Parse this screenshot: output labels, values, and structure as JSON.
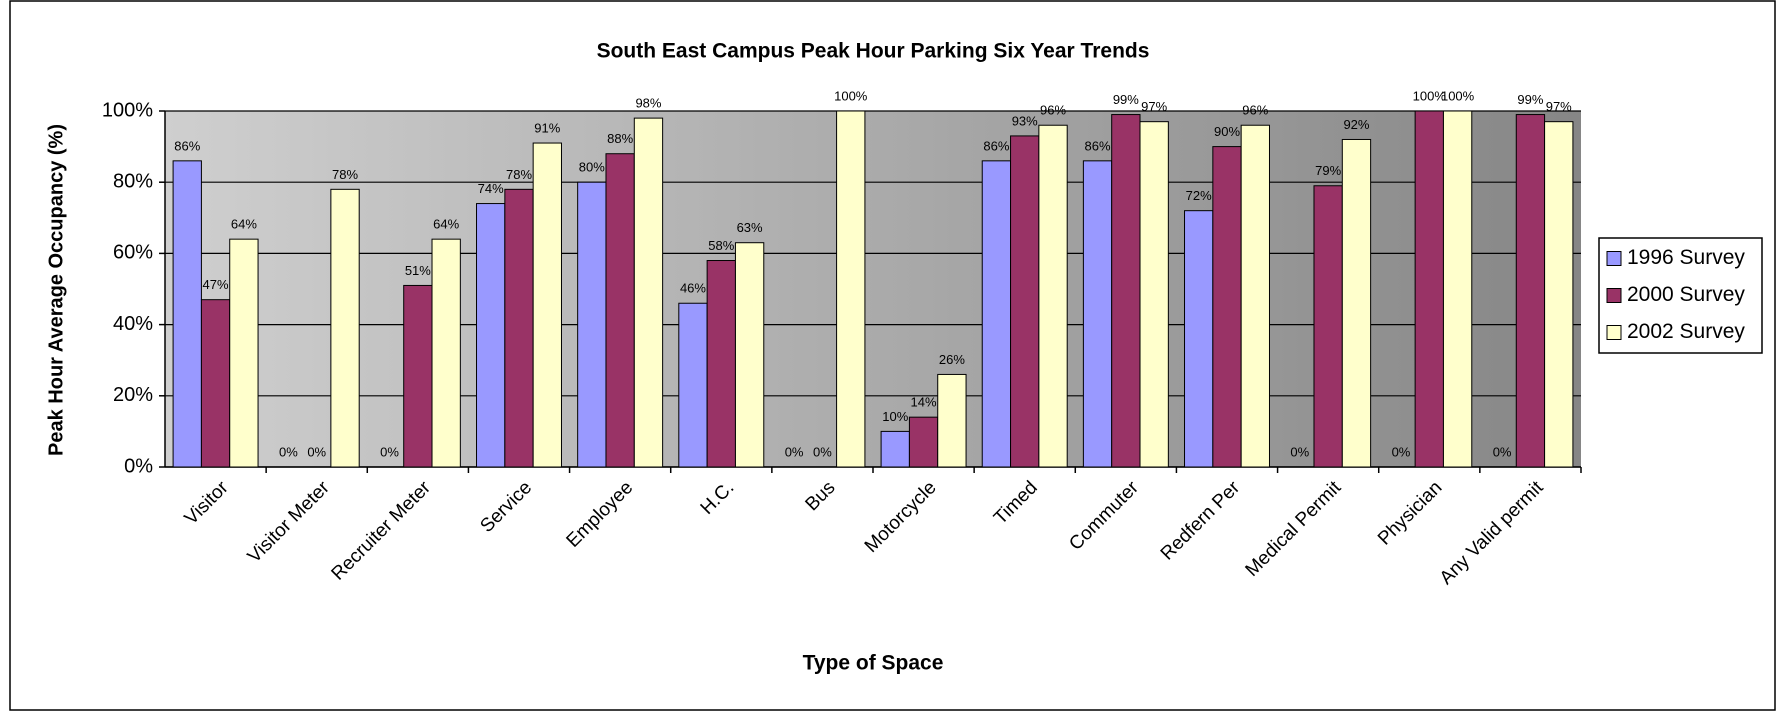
{
  "chart_data": {
    "type": "bar",
    "title": "South East Campus Peak Hour Parking Six Year Trends",
    "xlabel": "Type of Space",
    "ylabel": "Peak Hour Average Occupancy (%)",
    "categories": [
      "Visitor",
      "Visitor Meter",
      "Recruiter Meter",
      "Service",
      "Employee",
      "H.C.",
      "Bus",
      "Motorcycle",
      "Timed",
      "Commuter",
      "Redfern Per",
      "Medical Permit",
      "Physician",
      "Any Valid permit"
    ],
    "series": [
      {
        "name": "1996 Survey",
        "color": "#9999ff",
        "values": [
          86,
          0,
          0,
          74,
          80,
          46,
          0,
          10,
          86,
          86,
          72,
          0,
          0,
          0
        ],
        "value_labels": [
          "86%",
          "0%",
          "0%",
          "74%",
          "80%",
          "46%",
          "0%",
          "10%",
          "86%",
          "86%",
          "72%",
          "0%",
          "0%",
          "0%"
        ]
      },
      {
        "name": "2000 Survey",
        "color": "#993366",
        "values": [
          47,
          0,
          51,
          78,
          88,
          58,
          0,
          14,
          93,
          99,
          90,
          79,
          100,
          99
        ],
        "value_labels": [
          "47%",
          "0%",
          "51%",
          "78%",
          "88%",
          "58%",
          "0%",
          "14%",
          "93%",
          "99%",
          "90%",
          "79%",
          "100%",
          "99%"
        ]
      },
      {
        "name": "2002 Survey",
        "color": "#ffffcc",
        "values": [
          64,
          78,
          64,
          91,
          98,
          63,
          100,
          26,
          96,
          97,
          96,
          92,
          100,
          97
        ],
        "value_labels": [
          "64%",
          "78%",
          "64%",
          "91%",
          "98%",
          "63%",
          "100%",
          "26%",
          "96%",
          "97%",
          "96%",
          "92%",
          "100%",
          "97%"
        ]
      }
    ],
    "ylim": [
      0,
      100
    ],
    "yticks": [
      {
        "value": 0,
        "label": "0%"
      },
      {
        "value": 20,
        "label": "20%"
      },
      {
        "value": 40,
        "label": "40%"
      },
      {
        "value": 60,
        "label": "60%"
      },
      {
        "value": 80,
        "label": "80%"
      },
      {
        "value": 100,
        "label": "100%"
      }
    ],
    "grid": true,
    "legend": "right"
  }
}
